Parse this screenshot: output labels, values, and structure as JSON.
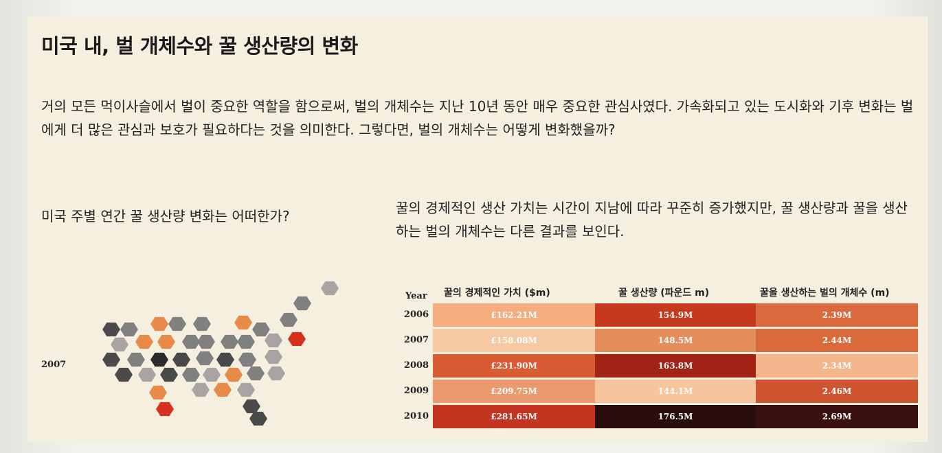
{
  "title": "미국 내, 벌 개체수와 꿀 생산량의 변화",
  "intro": "거의 모든 먹이사슬에서 벌이 중요한 역할을 함으로써, 벌의 개체수는 지난 10년 동안 매우 중요한 관심사였다. 가속화되고 있는 도시화와 기후 변화는 벌에게 더 많은 관심과 보호가 필요하다는 것을 의미한다. 그렇다면, 벌의 개체수는 어떻게 변화했을까?",
  "left_question": "미국 주별 연간 꿀 생산량 변화는 어떠한가?",
  "right_question": "꿀의 경제적인 생산 가치는 시간이 지남에 따라 꾸준히 증가했지만, 꿀 생산량과 꿀을 생산하는 벌의 개체수는 다른 결과를 보인다.",
  "map_year": "2007",
  "table": {
    "year_header": "Year",
    "col1_header": "꿀의 경제적인 가치 ($m)",
    "col2_header": "꿀 생산량 (파운드 m)",
    "col3_header": "꿀을 생산하는 벌의 개체수 (m)",
    "rows": [
      {
        "year": "2006",
        "value": "£162.21M",
        "production": "154.9M",
        "colonies": "2.39M",
        "c1": "#f3ad7f",
        "c2": "#c7391e",
        "c3": "#d86a3e"
      },
      {
        "year": "2007",
        "value": "£158.08M",
        "production": "148.5M",
        "colonies": "2.44M",
        "c1": "#f7c9a2",
        "c2": "#e58d5d",
        "c3": "#db6a3b"
      },
      {
        "year": "2008",
        "value": "£231.90M",
        "production": "163.8M",
        "colonies": "2.34M",
        "c1": "#d85b33",
        "c2": "#a02316",
        "c3": "#f3b58c"
      },
      {
        "year": "2009",
        "value": "£209.75M",
        "production": "144.1M",
        "colonies": "2.46M",
        "c1": "#eb9a6e",
        "c2": "#f6c49d",
        "c3": "#cf5530"
      },
      {
        "year": "2010",
        "value": "£281.65M",
        "production": "176.5M",
        "colonies": "2.69M",
        "c1": "#c43521",
        "c2": "#2a0d0d",
        "c3": "#3b1010"
      }
    ]
  }
}
